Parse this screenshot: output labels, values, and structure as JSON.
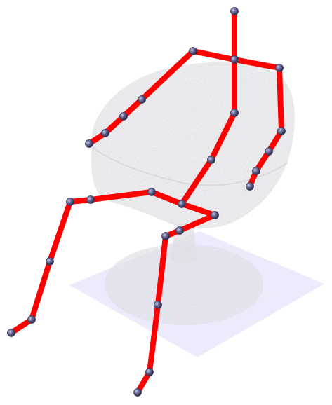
{
  "scene": {
    "background_color": "#ffffff",
    "floor_color": "#e8e8fb",
    "chair_color": "#bdbdbd",
    "bone_color": "#ff0000",
    "joint_color": "#5f5f8f",
    "bones": [
      {
        "name": "head-to-neck",
        "from": "head",
        "to": "neck"
      },
      {
        "name": "neck-to-left-shoulder",
        "from": "neck",
        "to": "left-shoulder"
      },
      {
        "name": "neck-to-right-shoulder",
        "from": "neck",
        "to": "right-shoulder"
      },
      {
        "name": "left-upper-arm",
        "from": "left-shoulder",
        "to": "left-elbow"
      },
      {
        "name": "left-forearm",
        "from": "left-elbow",
        "to": "left-wrist"
      },
      {
        "name": "left-hand",
        "from": "left-wrist",
        "to": "left-hand-tip"
      },
      {
        "name": "left-finger",
        "from": "left-hand-tip",
        "to": "left-finger-tip"
      },
      {
        "name": "right-upper-arm",
        "from": "right-shoulder",
        "to": "right-elbow"
      },
      {
        "name": "right-forearm",
        "from": "right-elbow",
        "to": "right-wrist"
      },
      {
        "name": "right-hand",
        "from": "right-wrist",
        "to": "right-hand-tip"
      },
      {
        "name": "right-finger",
        "from": "right-hand-tip",
        "to": "right-finger-tip"
      },
      {
        "name": "spine-upper",
        "from": "neck",
        "to": "spine-mid"
      },
      {
        "name": "spine-mid",
        "from": "spine-mid",
        "to": "spine-low"
      },
      {
        "name": "spine-lower",
        "from": "spine-low",
        "to": "pelvis"
      },
      {
        "name": "left-hip",
        "from": "pelvis",
        "to": "left-hip"
      },
      {
        "name": "left-thigh",
        "from": "left-hip",
        "to": "left-hip-outer"
      },
      {
        "name": "left-thigh-outer",
        "from": "left-hip-outer",
        "to": "left-knee"
      },
      {
        "name": "left-shin",
        "from": "left-knee",
        "to": "left-shin-mid"
      },
      {
        "name": "left-shin-lower",
        "from": "left-shin-mid",
        "to": "left-ankle"
      },
      {
        "name": "left-foot",
        "from": "left-ankle",
        "to": "left-foot-tip"
      },
      {
        "name": "right-hip",
        "from": "pelvis",
        "to": "right-hip"
      },
      {
        "name": "right-thigh",
        "from": "right-hip",
        "to": "right-knee-inner"
      },
      {
        "name": "right-thigh-lower",
        "from": "right-knee-inner",
        "to": "right-knee"
      },
      {
        "name": "right-shin",
        "from": "right-knee",
        "to": "right-shin-mid"
      },
      {
        "name": "right-shin-lower",
        "from": "right-shin-mid",
        "to": "right-ankle"
      },
      {
        "name": "right-foot",
        "from": "right-ankle",
        "to": "right-foot-tip"
      }
    ]
  }
}
